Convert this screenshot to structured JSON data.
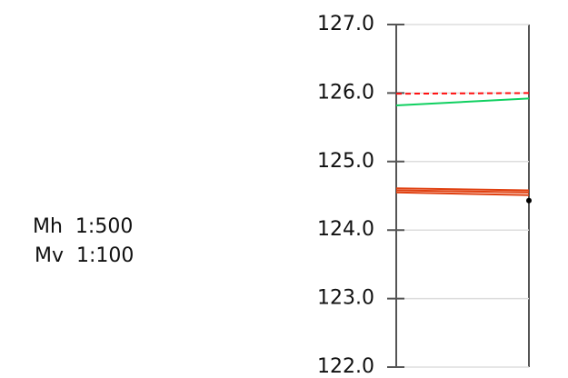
{
  "chart_data": {
    "type": "line",
    "annotations": [
      "Mh  1:500",
      "Mv  1:100"
    ],
    "categories": [
      null,
      null
    ],
    "series": [
      {
        "color": "#ff1010",
        "dash": "dashed",
        "values": [
          125.99,
          126.0
        ]
      },
      {
        "color": "#10d060",
        "values": [
          125.82,
          125.92
        ]
      },
      {
        "color": "#e04010",
        "values": [
          124.61,
          124.58
        ]
      },
      {
        "color": "#e04010",
        "values": [
          124.58,
          124.55
        ]
      },
      {
        "color": "#e04010",
        "values": [
          124.55,
          124.51
        ]
      },
      {
        "color": "#000000",
        "values": [
          null,
          124.43
        ]
      }
    ],
    "ylim": [
      122.0,
      127.0
    ],
    "yticks": [
      {
        "value": 122,
        "label": "122.0"
      },
      {
        "value": 123,
        "label": "123.0"
      },
      {
        "value": 124,
        "label": "124.0"
      },
      {
        "value": 125,
        "label": "125.0"
      },
      {
        "value": 126,
        "label": "126.0"
      },
      {
        "value": 127,
        "label": "127.0"
      }
    ],
    "grid": true
  }
}
